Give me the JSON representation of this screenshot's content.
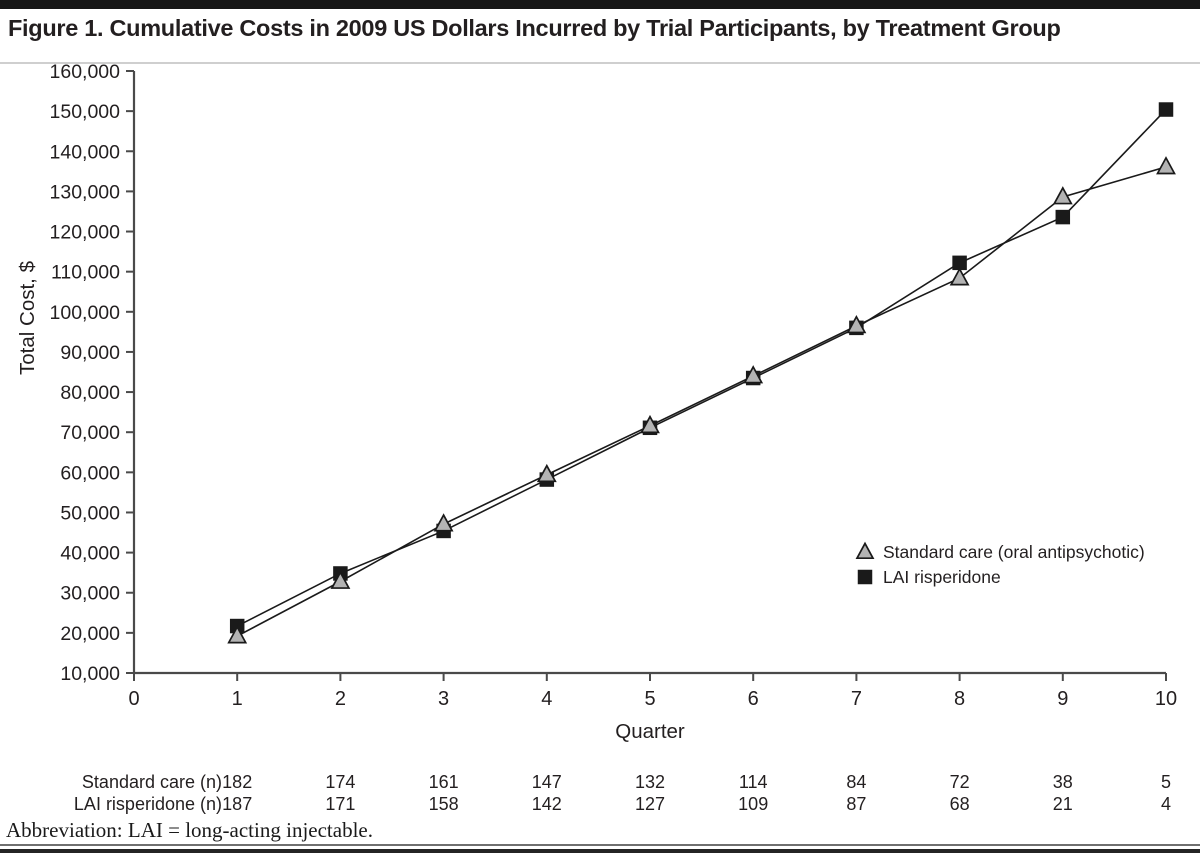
{
  "figure": {
    "abbreviation_note": "Abbreviation: LAI = long-acting injectable."
  },
  "colors": {
    "ink": "#231f20",
    "axis": "#4a4a4a",
    "line": "#1a1a1a",
    "rule_light": "#cfcfcf",
    "rule_dark": "#242424"
  },
  "chart_data": {
    "type": "line",
    "title": "Figure 1. Cumulative Costs in 2009 US Dollars Incurred by Trial Participants, by Treatment Group",
    "xlabel": "Quarter",
    "ylabel": "Total Cost, $",
    "xlim": [
      0,
      10
    ],
    "ylim": [
      10000,
      160000
    ],
    "xtick_step": 1,
    "ytick_step": 10000,
    "grid": false,
    "legend_position": "inside-right-middle",
    "x": [
      1,
      2,
      3,
      4,
      5,
      6,
      7,
      8,
      9,
      10
    ],
    "series": [
      {
        "name": "Standard care (oral antipsychotic)",
        "marker": "triangle",
        "marker_fill": "#b3b3b3",
        "marker_stroke": "#1a1a1a",
        "line_color": "#1a1a1a",
        "values": [
          19200,
          32800,
          47100,
          59400,
          71600,
          84000,
          96500,
          108400,
          128600,
          136100
        ]
      },
      {
        "name": "LAI risperidone",
        "marker": "square",
        "marker_fill": "#1a1a1a",
        "marker_stroke": "#1a1a1a",
        "line_color": "#1a1a1a",
        "values": [
          21700,
          34800,
          45400,
          58200,
          71100,
          83500,
          96000,
          112200,
          123600,
          150400
        ]
      }
    ],
    "n_table": {
      "rows": [
        {
          "label": "Standard care (n)",
          "values": [
            182,
            174,
            161,
            147,
            132,
            114,
            84,
            72,
            38,
            5
          ]
        },
        {
          "label": "LAI risperidone (n)",
          "values": [
            187,
            171,
            158,
            142,
            127,
            109,
            87,
            68,
            21,
            4
          ]
        }
      ]
    }
  }
}
